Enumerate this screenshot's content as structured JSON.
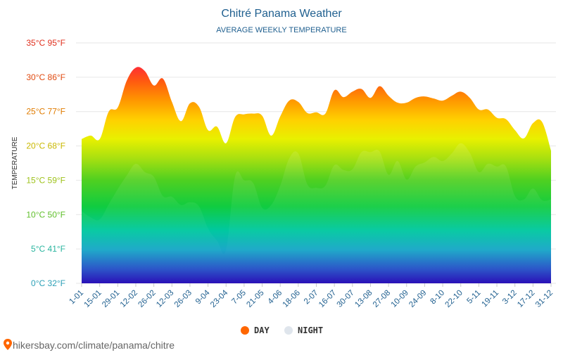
{
  "header": {
    "title": "Chitré Panama Weather",
    "subtitle": "AVERAGE WEEKLY TEMPERATURE"
  },
  "legend": {
    "day_label": "DAY",
    "night_label": "NIGHT"
  },
  "footer": {
    "source": "hikersbay.com/climate/panama/chitre"
  },
  "colors": {
    "title": "#1f5f8f",
    "subtitle": "#1f5f8f",
    "legend_day": "#ff6600",
    "legend_night": "#dfe5ec",
    "footer_pin": "#ff6600",
    "tick_label": "#1f5f8f"
  },
  "chart_data": {
    "type": "area",
    "title": "Chitré Panama Weather",
    "subtitle": "AVERAGE WEEKLY TEMPERATURE",
    "ylabel": "TEMPERATURE",
    "ylim": [
      0,
      35
    ],
    "y_ticks": [
      {
        "value": 0,
        "label": "0°C 32°F",
        "color": "#2a9fb6"
      },
      {
        "value": 5,
        "label": "5°C 41°F",
        "color": "#2ab59f"
      },
      {
        "value": 10,
        "label": "10°C 50°F",
        "color": "#5fbf2a"
      },
      {
        "value": 15,
        "label": "15°C 59°F",
        "color": "#9ec21a"
      },
      {
        "value": 20,
        "label": "20°C 68°F",
        "color": "#c9b800"
      },
      {
        "value": 25,
        "label": "25°C 77°F",
        "color": "#e07c00"
      },
      {
        "value": 30,
        "label": "30°C 86°F",
        "color": "#e04a10"
      },
      {
        "value": 35,
        "label": "35°C 95°F",
        "color": "#e0301e"
      }
    ],
    "x_labels": [
      "1-01",
      "15-01",
      "29-01",
      "12-02",
      "26-02",
      "12-03",
      "26-03",
      "9-04",
      "23-04",
      "7-05",
      "21-05",
      "4-06",
      "18-06",
      "2-07",
      "16-07",
      "30-07",
      "13-08",
      "27-08",
      "10-09",
      "24-09",
      "8-10",
      "22-10",
      "5-11",
      "19-11",
      "3-12",
      "17-12",
      "31-12"
    ],
    "grid": true,
    "legend_position": "bottom",
    "series": [
      {
        "name": "DAY",
        "values": [
          21.0,
          21.5,
          21.0,
          25.0,
          25.6,
          29.5,
          31.4,
          30.9,
          28.8,
          29.8,
          26.4,
          23.6,
          26.2,
          25.7,
          22.3,
          22.8,
          20.4,
          24.2,
          24.6,
          24.7,
          24.4,
          21.5,
          24.3,
          26.6,
          26.4,
          24.8,
          24.9,
          24.7,
          28.1,
          27.1,
          27.9,
          28.3,
          27.0,
          28.7,
          27.3,
          26.3,
          26.3,
          27.0,
          27.2,
          26.9,
          26.6,
          27.3,
          27.9,
          27.0,
          25.3,
          25.3,
          24.1,
          23.9,
          22.3,
          21.1,
          23.3,
          23.5,
          19.3
        ]
      },
      {
        "name": "NIGHT",
        "values": [
          10.5,
          9.6,
          9.3,
          11.5,
          13.7,
          15.7,
          17.4,
          16.2,
          15.5,
          12.7,
          12.6,
          11.4,
          11.8,
          11.2,
          8.0,
          6.2,
          4.9,
          15.6,
          15.0,
          14.6,
          11.0,
          11.4,
          14.2,
          18.2,
          18.9,
          14.4,
          13.9,
          14.2,
          17.2,
          16.5,
          16.6,
          19.1,
          19.1,
          19.2,
          15.8,
          17.8,
          15.1,
          17.0,
          17.6,
          18.4,
          17.8,
          18.9,
          20.4,
          19.0,
          16.2,
          17.4,
          17.0,
          17.0,
          12.7,
          12.2,
          13.8,
          12.1,
          12.2
        ]
      }
    ]
  }
}
